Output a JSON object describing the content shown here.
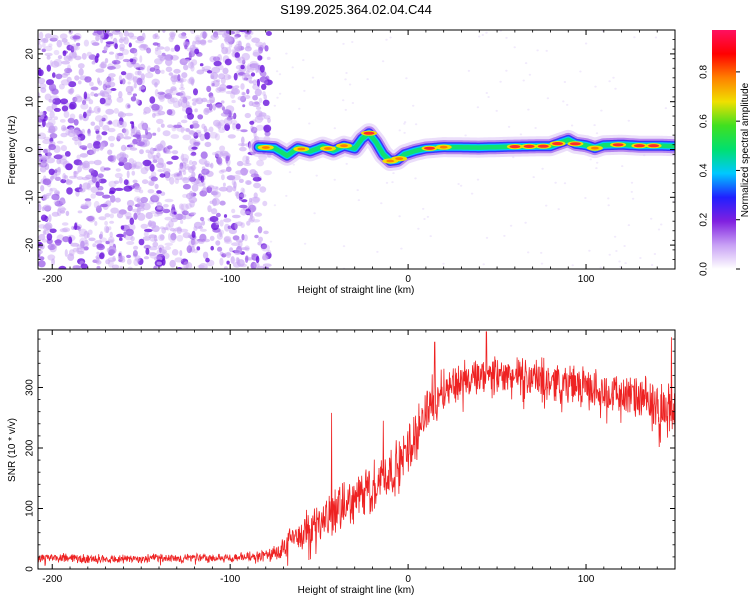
{
  "title": "S199.2025.364.02.04.C44",
  "chart_data": [
    {
      "type": "heatmap",
      "name": "spectrogram",
      "xlabel": "Height of straight line (km)",
      "ylabel": "Frequency (Hz)",
      "xlim": [
        -208,
        150
      ],
      "ylim": [
        -25,
        25
      ],
      "x_ticks": [
        -200,
        -100,
        0,
        100
      ],
      "y_ticks": [
        20,
        10,
        0,
        -10,
        -20
      ],
      "noise_region": [
        -208,
        -78
      ],
      "signal_ridge": {
        "x": [
          -84,
          -75,
          -68,
          -62,
          -55,
          -48,
          -42,
          -36,
          -30,
          -26,
          -22,
          -18,
          -14,
          -10,
          -6,
          -2,
          4,
          10,
          20,
          40,
          60,
          80,
          86,
          90,
          94,
          100,
          105,
          110,
          120,
          130,
          140,
          150
        ],
        "freq": [
          0.5,
          0.3,
          -1.3,
          0.3,
          -0.4,
          0.6,
          -0.2,
          0.8,
          0.2,
          2.2,
          3.4,
          1.5,
          -1.0,
          -2.4,
          -2.2,
          -1.0,
          -0.3,
          0.2,
          0.5,
          0.4,
          0.6,
          0.7,
          1.5,
          2.0,
          1.2,
          0.9,
          0.3,
          0.9,
          1.0,
          0.8,
          0.8,
          0.7
        ]
      },
      "colorbar": {
        "label": "Normalized spectral amplitude",
        "ticks": [
          0.0,
          0.2,
          0.4,
          0.6,
          0.8
        ],
        "range": [
          0,
          0.97
        ],
        "colors": [
          "#ffffff",
          "#c8a0f5",
          "#8020e0",
          "#2020ff",
          "#00c8ff",
          "#00e070",
          "#40e020",
          "#f0e000",
          "#ff8000",
          "#ff0000",
          "#ff1060"
        ]
      }
    },
    {
      "type": "line",
      "name": "snr",
      "xlabel": "Height of straight line (km)",
      "ylabel": "SNR (10 * v/v)",
      "xlim": [
        -208,
        150
      ],
      "ylim": [
        0,
        395
      ],
      "x_ticks": [
        -200,
        -100,
        0,
        100
      ],
      "y_ticks": [
        0,
        100,
        200,
        300
      ],
      "color": "#ee2222",
      "envelope": {
        "x": [
          -208,
          -180,
          -150,
          -120,
          -100,
          -90,
          -80,
          -72,
          -66,
          -60,
          -55,
          -50,
          -45,
          -40,
          -35,
          -30,
          -25,
          -20,
          -15,
          -10,
          -5,
          0,
          5,
          10,
          15,
          20,
          30,
          40,
          50,
          60,
          70,
          80,
          90,
          100,
          110,
          120,
          130,
          140,
          150
        ],
        "mean": [
          18,
          17,
          17,
          18,
          18,
          20,
          22,
          30,
          45,
          60,
          70,
          75,
          85,
          95,
          105,
          115,
          125,
          135,
          150,
          160,
          170,
          200,
          230,
          260,
          285,
          300,
          310,
          315,
          318,
          318,
          316,
          312,
          308,
          300,
          295,
          290,
          280,
          270,
          260
        ],
        "spread": [
          8,
          8,
          8,
          8,
          8,
          9,
          10,
          20,
          30,
          35,
          35,
          35,
          35,
          40,
          40,
          40,
          45,
          45,
          45,
          45,
          45,
          45,
          45,
          45,
          40,
          38,
          35,
          35,
          35,
          35,
          35,
          35,
          35,
          35,
          35,
          35,
          40,
          45,
          45
        ]
      },
      "spikes": [
        {
          "x": -43,
          "y": 258
        },
        {
          "x": -14,
          "y": 245
        },
        {
          "x": 15,
          "y": 375
        },
        {
          "x": 44,
          "y": 392
        },
        {
          "x": 148,
          "y": 383
        }
      ]
    }
  ]
}
